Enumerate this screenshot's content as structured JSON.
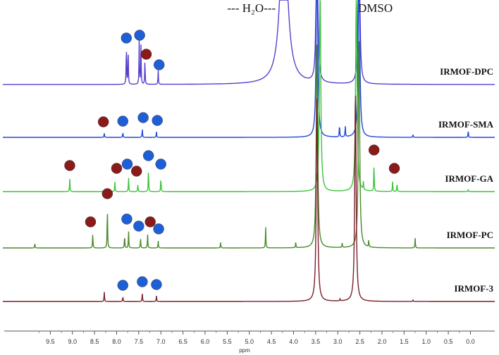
{
  "chart_data": {
    "type": "line",
    "title": "",
    "xlabel": "ppm",
    "x_reversed": true,
    "xlim": [
      10.0,
      -0.2
    ],
    "x_ticks": [
      9.5,
      9.0,
      8.5,
      8.0,
      7.5,
      7.0,
      6.5,
      6.0,
      5.5,
      5.0,
      4.5,
      4.0,
      3.5,
      3.0,
      2.5,
      2.0,
      1.5,
      1.0,
      0.5,
      0.0
    ],
    "x_tick_labels": [
      "9.5",
      "9.0",
      "8.5",
      "8.0",
      "7.5",
      "7.0",
      "6.5",
      "6.0",
      "5.5",
      "5.0",
      "4.5",
      "4.0",
      "3.5",
      "3.0",
      "2.5",
      "2.0",
      "1.5",
      "1.0",
      "0.5",
      "0.0"
    ],
    "annotations": [
      {
        "id": "water",
        "text": "--- H₂O---",
        "x": 4.95
      },
      {
        "id": "dmso",
        "text": "DMSO",
        "x": 2.15
      }
    ],
    "marker_colors": {
      "blue": "#1f5fd6",
      "red": "#8b1a1a"
    },
    "series": [
      {
        "name": "IRMOF-DPC",
        "color": "#5a3fd0",
        "peaks": [
          {
            "x": 7.78,
            "h": 58
          },
          {
            "x": 7.74,
            "h": 52
          },
          {
            "x": 7.49,
            "h": 62
          },
          {
            "x": 7.45,
            "h": 55
          },
          {
            "x": 7.36,
            "h": 35
          },
          {
            "x": 7.06,
            "h": 20
          },
          {
            "x": 4.22,
            "h": 260
          },
          {
            "x": 3.47,
            "h": 300
          },
          {
            "x": 2.52,
            "h": 300
          }
        ],
        "markers": [
          {
            "x": 7.78,
            "color": "blue"
          },
          {
            "x": 7.48,
            "color": "blue"
          },
          {
            "x": 7.33,
            "color": "red"
          },
          {
            "x": 7.04,
            "color": "blue"
          }
        ]
      },
      {
        "name": "IRMOF-SMA",
        "color": "#2047d8",
        "peaks": [
          {
            "x": 8.28,
            "h": 6
          },
          {
            "x": 7.86,
            "h": 7
          },
          {
            "x": 7.42,
            "h": 12
          },
          {
            "x": 7.1,
            "h": 8
          },
          {
            "x": 3.47,
            "h": 300
          },
          {
            "x": 2.96,
            "h": 18
          },
          {
            "x": 2.83,
            "h": 16
          },
          {
            "x": 2.52,
            "h": 300
          },
          {
            "x": 1.3,
            "h": 4
          },
          {
            "x": 0.05,
            "h": 10
          }
        ],
        "markers": [
          {
            "x": 8.3,
            "color": "red"
          },
          {
            "x": 7.86,
            "color": "blue"
          },
          {
            "x": 7.4,
            "color": "blue"
          },
          {
            "x": 7.08,
            "color": "blue"
          }
        ]
      },
      {
        "name": "IRMOF-GA",
        "color": "#3cc43c",
        "peaks": [
          {
            "x": 9.06,
            "h": 18
          },
          {
            "x": 8.04,
            "h": 14
          },
          {
            "x": 7.73,
            "h": 20
          },
          {
            "x": 7.52,
            "h": 10
          },
          {
            "x": 7.28,
            "h": 32
          },
          {
            "x": 7.0,
            "h": 20
          },
          {
            "x": 3.4,
            "h": 300
          },
          {
            "x": 2.58,
            "h": 300
          },
          {
            "x": 2.42,
            "h": 12
          },
          {
            "x": 2.18,
            "h": 40
          },
          {
            "x": 1.76,
            "h": 14
          },
          {
            "x": 1.66,
            "h": 12
          },
          {
            "x": 0.05,
            "h": 3
          }
        ],
        "markers": [
          {
            "x": 9.06,
            "color": "red"
          },
          {
            "x": 8.0,
            "color": "red"
          },
          {
            "x": 7.76,
            "color": "blue"
          },
          {
            "x": 7.55,
            "color": "red"
          },
          {
            "x": 7.28,
            "color": "blue"
          },
          {
            "x": 7.0,
            "color": "blue"
          },
          {
            "x": 2.18,
            "color": "red"
          },
          {
            "x": 1.72,
            "color": "red"
          }
        ]
      },
      {
        "name": "IRMOF-PC",
        "color": "#4a8a2a",
        "peaks": [
          {
            "x": 9.85,
            "h": 6
          },
          {
            "x": 8.54,
            "h": 20
          },
          {
            "x": 8.21,
            "h": 60
          },
          {
            "x": 7.82,
            "h": 18
          },
          {
            "x": 7.73,
            "h": 24
          },
          {
            "x": 7.46,
            "h": 14
          },
          {
            "x": 7.3,
            "h": 20
          },
          {
            "x": 7.06,
            "h": 10
          },
          {
            "x": 5.65,
            "h": 8
          },
          {
            "x": 4.63,
            "h": 30
          },
          {
            "x": 3.95,
            "h": 8
          },
          {
            "x": 3.47,
            "h": 300
          },
          {
            "x": 2.9,
            "h": 6
          },
          {
            "x": 2.52,
            "h": 300
          },
          {
            "x": 2.3,
            "h": 10
          },
          {
            "x": 1.25,
            "h": 14
          }
        ],
        "markers": [
          {
            "x": 8.59,
            "color": "red"
          },
          {
            "x": 8.21,
            "color": "red"
          },
          {
            "x": 7.77,
            "color": "blue"
          },
          {
            "x": 7.5,
            "color": "blue"
          },
          {
            "x": 7.24,
            "color": "red"
          },
          {
            "x": 7.05,
            "color": "blue"
          }
        ]
      },
      {
        "name": "IRMOF-3",
        "color": "#7a1f2b",
        "peaks": [
          {
            "x": 8.28,
            "h": 14
          },
          {
            "x": 7.86,
            "h": 7
          },
          {
            "x": 7.42,
            "h": 12
          },
          {
            "x": 7.1,
            "h": 8
          },
          {
            "x": 3.47,
            "h": 300
          },
          {
            "x": 2.95,
            "h": 3
          },
          {
            "x": 2.6,
            "h": 300
          },
          {
            "x": 1.3,
            "h": 2
          }
        ],
        "markers": [
          {
            "x": 7.86,
            "color": "blue"
          },
          {
            "x": 7.42,
            "color": "blue"
          },
          {
            "x": 7.1,
            "color": "blue"
          }
        ]
      }
    ]
  }
}
